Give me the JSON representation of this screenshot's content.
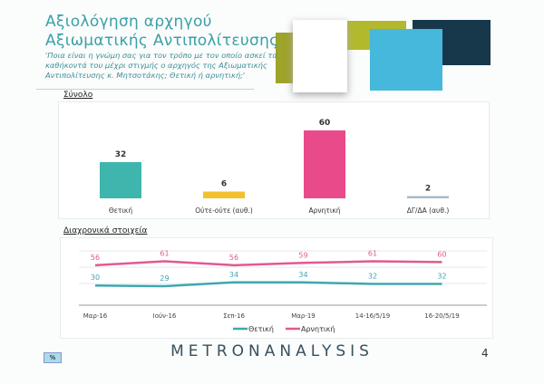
{
  "header": {
    "title": "Αξιολόγηση αρχηγού Αξιωματικής Αντιπολίτευσης",
    "question": "'Ποια είναι η γνώμη σας για τον τρόπο με τον οποίο ασκεί τα καθήκοντά του μέχρι στιγμής ο αρχηγός της Αξιωματικής Αντιπολίτευσης κ. Μητσοτάκης; Θετική ή αρνητική;'"
  },
  "footer": {
    "logo": "METRONANALYSIS",
    "page": "4",
    "unit": "%"
  },
  "chart_data": [
    {
      "type": "bar",
      "title": "Σύνολο",
      "categories": [
        "Θετική",
        "Ούτε-ούτε (αυθ.)",
        "Αρνητική",
        "ΔΓ/ΔΑ (αυθ.)"
      ],
      "values": [
        32,
        6,
        60,
        2
      ],
      "colors": [
        "#3fb6ad",
        "#f2c12e",
        "#e94b8a",
        "#a8b8c8"
      ]
    },
    {
      "type": "line",
      "title": "Διαχρονικά στοιχεία",
      "categories": [
        "Μαρ-16",
        "Ιούν-16",
        "Σεπ-16",
        "Μαρ-19",
        "14-16/5/19",
        "16-20/5/19"
      ],
      "series": [
        {
          "name": "Θετική",
          "values": [
            30,
            29,
            34,
            34,
            32,
            32
          ],
          "color": "#3ea7b0"
        },
        {
          "name": "Αρνητική",
          "values": [
            56,
            61,
            56,
            59,
            61,
            60
          ],
          "color": "#e05a8f"
        }
      ],
      "legend": "bottom"
    }
  ]
}
